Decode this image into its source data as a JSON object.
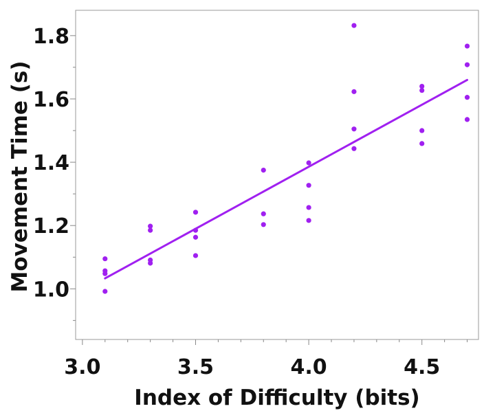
{
  "chart_data": {
    "type": "scatter",
    "title": "",
    "xlabel": "Index of Difficulty (bits)",
    "ylabel": "Movement Time (s)",
    "xlim": [
      2.97,
      4.75
    ],
    "ylim": [
      0.84,
      1.88
    ],
    "x_ticks": [
      3.0,
      3.5,
      4.0,
      4.5
    ],
    "x_tick_labels": [
      "3.0",
      "3.5",
      "4.0",
      "4.5"
    ],
    "x_minor_ticks": [
      3.1,
      3.2,
      3.3,
      3.4,
      3.6,
      3.7,
      3.8,
      3.9,
      4.1,
      4.2,
      4.3,
      4.4,
      4.6,
      4.7
    ],
    "y_ticks": [
      1.0,
      1.2,
      1.4,
      1.6,
      1.8
    ],
    "y_tick_labels": [
      "1.0",
      "1.2",
      "1.4",
      "1.6",
      "1.8"
    ],
    "y_minor_ticks": [
      0.9,
      1.1,
      1.3,
      1.5,
      1.7
    ],
    "grid": false,
    "legend": "none",
    "color": "#a020f0",
    "series": [
      {
        "points": [
          [
            3.1,
            1.095
          ],
          [
            3.1,
            1.057
          ],
          [
            3.1,
            1.048
          ],
          [
            3.1,
            0.992
          ],
          [
            3.3,
            1.198
          ],
          [
            3.3,
            1.185
          ],
          [
            3.3,
            1.091
          ],
          [
            3.3,
            1.081
          ],
          [
            3.5,
            1.242
          ],
          [
            3.5,
            1.185
          ],
          [
            3.5,
            1.163
          ],
          [
            3.5,
            1.105
          ],
          [
            3.8,
            1.375
          ],
          [
            3.8,
            1.237
          ],
          [
            3.8,
            1.203
          ],
          [
            4.0,
            1.398
          ],
          [
            4.0,
            1.327
          ],
          [
            4.0,
            1.257
          ],
          [
            4.0,
            1.216
          ],
          [
            4.2,
            1.832
          ],
          [
            4.2,
            1.623
          ],
          [
            4.2,
            1.505
          ],
          [
            4.2,
            1.443
          ],
          [
            4.5,
            1.64
          ],
          [
            4.5,
            1.627
          ],
          [
            4.5,
            1.5
          ],
          [
            4.5,
            1.459
          ],
          [
            4.7,
            1.767
          ],
          [
            4.7,
            1.708
          ],
          [
            4.7,
            1.605
          ],
          [
            4.7,
            1.535
          ]
        ]
      }
    ],
    "fit_line": {
      "x": [
        3.1,
        4.7
      ],
      "y": [
        1.033,
        1.66
      ]
    }
  }
}
